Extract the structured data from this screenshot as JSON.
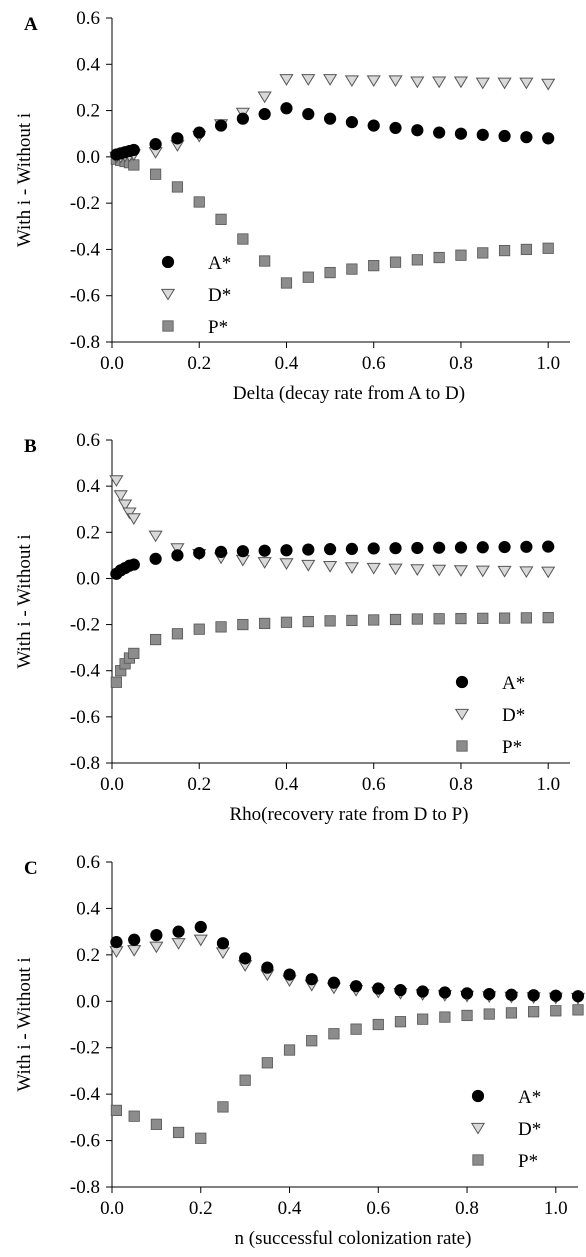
{
  "chart_data": [
    {
      "panel": "A",
      "type": "scatter",
      "xlabel": "Delta (decay rate from A to D)",
      "ylabel": "With i - Without i",
      "xlim": [
        0.0,
        1.05
      ],
      "ylim": [
        -0.8,
        0.6
      ],
      "xticks": [
        "0.0",
        "0.2",
        "0.4",
        "0.6",
        "0.8",
        "1.0"
      ],
      "yticks": [
        "-0.8",
        "-0.6",
        "-0.4",
        "-0.2",
        "0.0",
        "0.2",
        "0.4",
        "0.6"
      ],
      "legend_position": "bottom-left",
      "series": [
        {
          "name": "A*",
          "marker": "circle",
          "color": "#000000",
          "x": [
            0.01,
            0.02,
            0.03,
            0.04,
            0.05,
            0.1,
            0.15,
            0.2,
            0.25,
            0.3,
            0.35,
            0.4,
            0.45,
            0.5,
            0.55,
            0.6,
            0.65,
            0.7,
            0.75,
            0.8,
            0.85,
            0.9,
            0.95,
            1.0
          ],
          "y": [
            0.01,
            0.015,
            0.02,
            0.025,
            0.03,
            0.055,
            0.08,
            0.105,
            0.135,
            0.165,
            0.185,
            0.21,
            0.185,
            0.165,
            0.15,
            0.135,
            0.125,
            0.115,
            0.105,
            0.1,
            0.095,
            0.09,
            0.085,
            0.08
          ]
        },
        {
          "name": "D*",
          "marker": "triangle-down",
          "color": "#d9d9d9",
          "x": [
            0.01,
            0.02,
            0.03,
            0.04,
            0.05,
            0.1,
            0.15,
            0.2,
            0.25,
            0.3,
            0.35,
            0.4,
            0.45,
            0.5,
            0.55,
            0.6,
            0.65,
            0.7,
            0.75,
            0.8,
            0.85,
            0.9,
            0.95,
            1.0
          ],
          "y": [
            0.0,
            0.0,
            0.005,
            0.005,
            0.01,
            0.02,
            0.05,
            0.09,
            0.14,
            0.19,
            0.26,
            0.335,
            0.335,
            0.335,
            0.33,
            0.33,
            0.33,
            0.325,
            0.325,
            0.325,
            0.32,
            0.32,
            0.32,
            0.315
          ]
        },
        {
          "name": "P*",
          "marker": "square",
          "color": "#8c8c8c",
          "x": [
            0.01,
            0.02,
            0.03,
            0.04,
            0.05,
            0.1,
            0.15,
            0.2,
            0.25,
            0.3,
            0.35,
            0.4,
            0.45,
            0.5,
            0.55,
            0.6,
            0.65,
            0.7,
            0.75,
            0.8,
            0.85,
            0.9,
            0.95,
            1.0
          ],
          "y": [
            -0.01,
            -0.015,
            -0.02,
            -0.025,
            -0.035,
            -0.075,
            -0.13,
            -0.195,
            -0.27,
            -0.355,
            -0.45,
            -0.545,
            -0.52,
            -0.5,
            -0.485,
            -0.47,
            -0.455,
            -0.445,
            -0.435,
            -0.425,
            -0.415,
            -0.405,
            -0.4,
            -0.395
          ]
        }
      ]
    },
    {
      "panel": "B",
      "type": "scatter",
      "xlabel": "Rho(recovery rate from D to P)",
      "ylabel": "With i - Without i",
      "xlim": [
        0.0,
        1.05
      ],
      "ylim": [
        -0.8,
        0.6
      ],
      "xticks": [
        "0.0",
        "0.2",
        "0.4",
        "0.6",
        "0.8",
        "1.0"
      ],
      "yticks": [
        "-0.8",
        "-0.6",
        "-0.4",
        "-0.2",
        "0.0",
        "0.2",
        "0.4",
        "0.6"
      ],
      "legend_position": "bottom-right",
      "series": [
        {
          "name": "A*",
          "marker": "circle",
          "color": "#000000",
          "x": [
            0.01,
            0.02,
            0.03,
            0.04,
            0.05,
            0.1,
            0.15,
            0.2,
            0.25,
            0.3,
            0.35,
            0.4,
            0.45,
            0.5,
            0.55,
            0.6,
            0.65,
            0.7,
            0.75,
            0.8,
            0.85,
            0.9,
            0.95,
            1.0
          ],
          "y": [
            0.02,
            0.035,
            0.045,
            0.055,
            0.06,
            0.085,
            0.1,
            0.11,
            0.115,
            0.118,
            0.12,
            0.122,
            0.125,
            0.127,
            0.128,
            0.13,
            0.131,
            0.132,
            0.133,
            0.134,
            0.135,
            0.136,
            0.137,
            0.138
          ]
        },
        {
          "name": "D*",
          "marker": "triangle-down",
          "color": "#d9d9d9",
          "x": [
            0.01,
            0.02,
            0.03,
            0.04,
            0.05,
            0.1,
            0.15,
            0.2,
            0.25,
            0.3,
            0.35,
            0.4,
            0.45,
            0.5,
            0.55,
            0.6,
            0.65,
            0.7,
            0.75,
            0.8,
            0.85,
            0.9,
            0.95,
            1.0
          ],
          "y": [
            0.425,
            0.36,
            0.32,
            0.285,
            0.26,
            0.185,
            0.13,
            0.105,
            0.09,
            0.08,
            0.07,
            0.065,
            0.058,
            0.053,
            0.048,
            0.045,
            0.042,
            0.039,
            0.037,
            0.035,
            0.033,
            0.032,
            0.03,
            0.029
          ]
        },
        {
          "name": "P*",
          "marker": "square",
          "color": "#8c8c8c",
          "x": [
            0.01,
            0.02,
            0.03,
            0.04,
            0.05,
            0.1,
            0.15,
            0.2,
            0.25,
            0.3,
            0.35,
            0.4,
            0.45,
            0.5,
            0.55,
            0.6,
            0.65,
            0.7,
            0.75,
            0.8,
            0.85,
            0.9,
            0.95,
            1.0
          ],
          "y": [
            -0.45,
            -0.4,
            -0.37,
            -0.345,
            -0.325,
            -0.265,
            -0.24,
            -0.22,
            -0.21,
            -0.2,
            -0.195,
            -0.19,
            -0.187,
            -0.184,
            -0.182,
            -0.18,
            -0.178,
            -0.176,
            -0.175,
            -0.174,
            -0.173,
            -0.172,
            -0.171,
            -0.17
          ]
        }
      ]
    },
    {
      "panel": "C",
      "type": "scatter",
      "xlabel": "n (successful colonization rate)",
      "ylabel": "With i - Without i",
      "xlim": [
        0.0,
        1.05
      ],
      "ylim": [
        -0.8,
        0.6
      ],
      "xticks": [
        "0.0",
        "0.2",
        "0.4",
        "0.6",
        "0.8",
        "1.0"
      ],
      "yticks": [
        "-0.8",
        "-0.6",
        "-0.4",
        "-0.2",
        "0.0",
        "0.2",
        "0.4",
        "0.6"
      ],
      "legend_position": "bottom-right",
      "series": [
        {
          "name": "A*",
          "marker": "circle",
          "color": "#000000",
          "x": [
            0.01,
            0.05,
            0.1,
            0.15,
            0.2,
            0.25,
            0.3,
            0.35,
            0.4,
            0.45,
            0.5,
            0.55,
            0.6,
            0.65,
            0.7,
            0.75,
            0.8,
            0.85,
            0.9,
            0.95,
            1.0,
            1.05
          ],
          "y": [
            0.255,
            0.265,
            0.285,
            0.3,
            0.32,
            0.25,
            0.185,
            0.145,
            0.115,
            0.095,
            0.08,
            0.065,
            0.055,
            0.048,
            0.042,
            0.038,
            0.034,
            0.031,
            0.028,
            0.026,
            0.024,
            0.022
          ]
        },
        {
          "name": "D*",
          "marker": "triangle-down",
          "color": "#d9d9d9",
          "x": [
            0.01,
            0.05,
            0.1,
            0.15,
            0.2,
            0.25,
            0.3,
            0.35,
            0.4,
            0.45,
            0.5,
            0.55,
            0.6,
            0.65,
            0.7,
            0.75,
            0.8,
            0.85,
            0.9,
            0.95,
            1.0,
            1.05
          ],
          "y": [
            0.215,
            0.22,
            0.235,
            0.25,
            0.265,
            0.21,
            0.155,
            0.115,
            0.09,
            0.07,
            0.058,
            0.048,
            0.04,
            0.035,
            0.03,
            0.026,
            0.023,
            0.021,
            0.019,
            0.017,
            0.015,
            0.014
          ]
        },
        {
          "name": "P*",
          "marker": "square",
          "color": "#8c8c8c",
          "x": [
            0.01,
            0.05,
            0.1,
            0.15,
            0.2,
            0.25,
            0.3,
            0.35,
            0.4,
            0.45,
            0.5,
            0.55,
            0.6,
            0.65,
            0.7,
            0.75,
            0.8,
            0.85,
            0.9,
            0.95,
            1.0,
            1.05
          ],
          "y": [
            -0.47,
            -0.495,
            -0.53,
            -0.565,
            -0.59,
            -0.455,
            -0.34,
            -0.265,
            -0.21,
            -0.17,
            -0.14,
            -0.12,
            -0.1,
            -0.088,
            -0.077,
            -0.068,
            -0.061,
            -0.055,
            -0.05,
            -0.045,
            -0.041,
            -0.037
          ]
        }
      ]
    }
  ]
}
